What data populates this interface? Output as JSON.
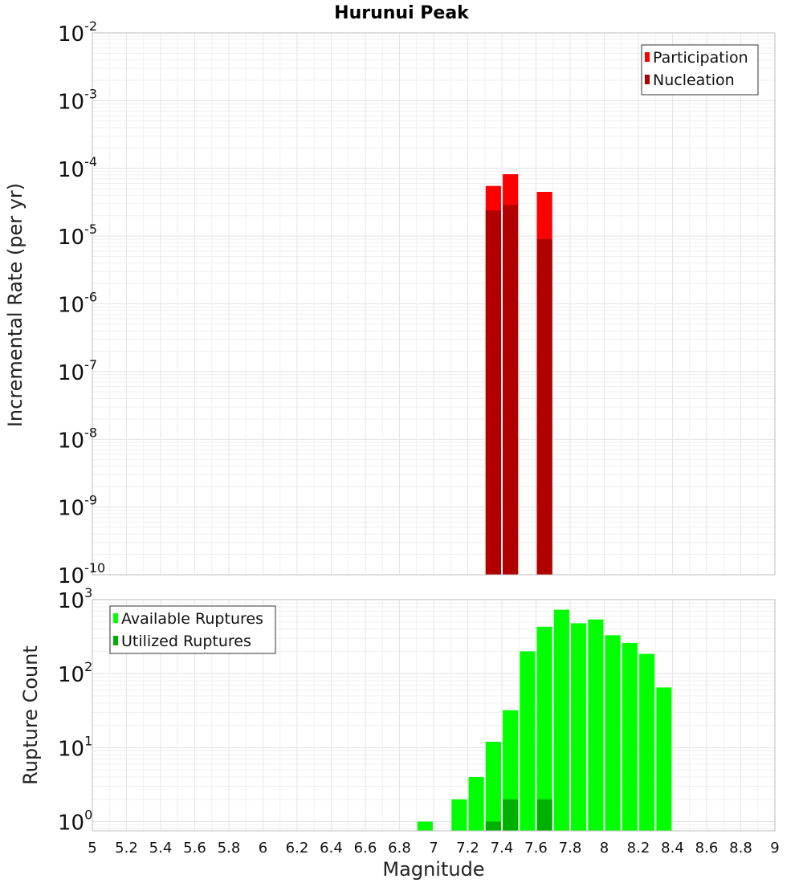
{
  "chart_data": [
    {
      "type": "bar",
      "title": "Hurunui Peak",
      "ylabel": "Incremental Rate (per yr)",
      "xlabel": "",
      "xlim": [
        5,
        9
      ],
      "ylim": [
        1e-10,
        0.01
      ],
      "yscale": "log",
      "ytick_labels": [
        {
          "base": "10",
          "exp": "-2"
        },
        {
          "base": "10",
          "exp": "-3"
        },
        {
          "base": "10",
          "exp": "-4"
        },
        {
          "base": "10",
          "exp": "-5"
        },
        {
          "base": "10",
          "exp": "-6"
        },
        {
          "base": "10",
          "exp": "-7"
        },
        {
          "base": "10",
          "exp": "-8"
        },
        {
          "base": "10",
          "exp": "-9"
        },
        {
          "base": "10",
          "exp": "-10"
        }
      ],
      "grid": true,
      "legend_placement": "top-right",
      "series": [
        {
          "name": "Participation",
          "color": "#ff0000",
          "x": [
            7.35,
            7.45,
            7.65
          ],
          "values": [
            5.5e-05,
            8.2e-05,
            4.5e-05
          ]
        },
        {
          "name": "Nucleation",
          "color": "#b00000",
          "x": [
            7.35,
            7.45,
            7.65
          ],
          "values": [
            2.4e-05,
            2.9e-05,
            9e-06
          ]
        }
      ]
    },
    {
      "type": "bar",
      "title": "",
      "ylabel": "Rupture Count",
      "xlabel": "Magnitude",
      "xlim": [
        5,
        9
      ],
      "ylim": [
        0.75,
        1000
      ],
      "yscale": "log",
      "ytick_labels": [
        {
          "base": "10",
          "exp": "3"
        },
        {
          "base": "10",
          "exp": "2"
        },
        {
          "base": "10",
          "exp": "1"
        },
        {
          "base": "10",
          "exp": "0"
        }
      ],
      "xtick_labels": [
        "5",
        "5.2",
        "5.4",
        "5.6",
        "5.8",
        "6",
        "6.2",
        "6.4",
        "6.6",
        "6.8",
        "7",
        "7.2",
        "7.4",
        "7.6",
        "7.8",
        "8",
        "8.2",
        "8.4",
        "8.6",
        "8.8",
        "9"
      ],
      "grid": true,
      "legend_placement": "top-left",
      "series": [
        {
          "name": "Available Ruptures",
          "color": "#00ff00",
          "x": [
            6.95,
            7.15,
            7.25,
            7.35,
            7.45,
            7.55,
            7.65,
            7.75,
            7.85,
            7.95,
            8.05,
            8.15,
            8.25,
            8.35
          ],
          "values": [
            1,
            2,
            4,
            12,
            32,
            200,
            430,
            730,
            480,
            540,
            330,
            260,
            185,
            65
          ]
        },
        {
          "name": "Utilized Ruptures",
          "color": "#00b000",
          "x": [
            7.35,
            7.45,
            7.65
          ],
          "values": [
            1,
            2,
            2
          ]
        }
      ]
    }
  ]
}
